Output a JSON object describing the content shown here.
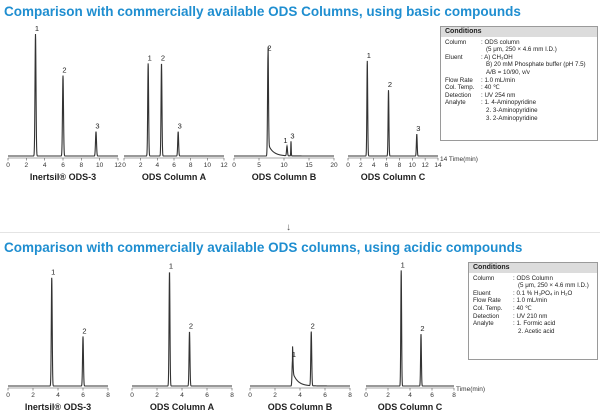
{
  "section1": {
    "title": "Comparison with commercially available ODS Columns, using basic compounds",
    "conditions": {
      "heading": "Conditions",
      "rows": [
        {
          "label": "Column",
          "lines": [
            ": ODS column",
            "(5 μm, 250 × 4.6 mm I.D.)"
          ]
        },
        {
          "label": "Eluent",
          "lines": [
            ": A) CH₃OH",
            "B) 20 mM Phosphate buffer (pH 7.5)",
            "A/B = 10/90, v/v"
          ]
        },
        {
          "label": "Flow Rate",
          "lines": [
            ": 1.0 mL/min"
          ]
        },
        {
          "label": "Col. Temp.",
          "lines": [
            ": 40 ℃"
          ]
        },
        {
          "label": "Detection",
          "lines": [
            ": UV 254 nm"
          ]
        },
        {
          "label": "Analyte",
          "lines": [
            ": 1. 4-Aminopyridine",
            "2. 3-Aminopyridine",
            "3. 2-Aminopyridine"
          ]
        }
      ]
    }
  },
  "arrow": "↓",
  "section2": {
    "title": "Comparison with commercially available ODS columns, using acidic compounds",
    "conditions": {
      "heading": "Conditions",
      "rows": [
        {
          "label": "Column",
          "lines": [
            ": ODS Column",
            "(5 μm, 250 × 4.6 mm I.D.)"
          ]
        },
        {
          "label": "Eluent",
          "lines": [
            ": 0.1 % H₃PO₄ in H₂O"
          ]
        },
        {
          "label": "Flow Rate",
          "lines": [
            ": 1.0 mL/min"
          ]
        },
        {
          "label": "Col. Temp.",
          "lines": [
            ": 40 ℃"
          ]
        },
        {
          "label": "Detection",
          "lines": [
            ": UV 210 nm"
          ]
        },
        {
          "label": "Analyte",
          "lines": [
            ": 1. Formic acid",
            "2. Acetic acid"
          ]
        }
      ]
    }
  },
  "chart_data": [
    {
      "type": "line",
      "title": "Inertsil® ODS-3",
      "xlim": [
        0,
        12
      ],
      "ticks": [
        0,
        2,
        4,
        6,
        8,
        10,
        12
      ],
      "xunit": "",
      "peaks": [
        {
          "label": "1",
          "t": 3.0,
          "h": 1.0
        },
        {
          "label": "2",
          "t": 6.0,
          "h": 0.66
        },
        {
          "label": "3",
          "t": 9.6,
          "h": 0.2
        }
      ]
    },
    {
      "type": "line",
      "title": "ODS Column A",
      "xlim": [
        0,
        12
      ],
      "ticks": [
        0,
        2,
        4,
        6,
        8,
        10,
        12
      ],
      "xunit": "",
      "peaks": [
        {
          "label": "1",
          "t": 2.9,
          "h": 0.76
        },
        {
          "label": "2",
          "t": 4.5,
          "h": 0.76
        },
        {
          "label": "3",
          "t": 6.5,
          "h": 0.2
        }
      ]
    },
    {
      "type": "line",
      "title": "ODS Column B",
      "xlim": [
        0,
        20
      ],
      "ticks": [
        0,
        5,
        10,
        15,
        20
      ],
      "xunit": "",
      "peaks": [
        {
          "label": "2",
          "t": 6.8,
          "h": 0.84,
          "tail": 0.1
        },
        {
          "label": "1",
          "t": 10.6,
          "h": 0.08
        },
        {
          "label": "3",
          "t": 11.4,
          "h": 0.12,
          "width": 0.5
        }
      ]
    },
    {
      "type": "line",
      "title": "ODS Column C",
      "xlim": [
        0,
        14
      ],
      "ticks": [
        0,
        2,
        4,
        6,
        8,
        10,
        12,
        14
      ],
      "xunit": "14 Time(min)",
      "peaks": [
        {
          "label": "1",
          "t": 3.0,
          "h": 0.78
        },
        {
          "label": "2",
          "t": 6.3,
          "h": 0.54
        },
        {
          "label": "3",
          "t": 10.7,
          "h": 0.18
        }
      ]
    },
    {
      "type": "line",
      "title": "Inertsil® ODS-3",
      "xlim": [
        0,
        8
      ],
      "ticks": [
        0,
        2,
        4,
        6,
        8
      ],
      "xunit": "",
      "peaks": [
        {
          "label": "1",
          "t": 3.5,
          "h": 0.92
        },
        {
          "label": "2",
          "t": 6.0,
          "h": 0.42
        }
      ]
    },
    {
      "type": "line",
      "title": "ODS Column A",
      "xlim": [
        0,
        8
      ],
      "ticks": [
        0,
        2,
        4,
        6,
        8
      ],
      "xunit": "",
      "peaks": [
        {
          "label": "1",
          "t": 3.0,
          "h": 0.97
        },
        {
          "label": "2",
          "t": 4.6,
          "h": 0.46
        }
      ]
    },
    {
      "type": "line",
      "title": "ODS Column B",
      "xlim": [
        0,
        8
      ],
      "ticks": [
        0,
        2,
        4,
        6,
        8
      ],
      "xunit": "",
      "peaks": [
        {
          "label": "1",
          "t": 3.4,
          "h": 0.22,
          "tail": 0.12
        },
        {
          "label": "2",
          "t": 4.9,
          "h": 0.46
        }
      ]
    },
    {
      "type": "line",
      "title": "ODS Column C",
      "xlim": [
        0,
        8
      ],
      "ticks": [
        0,
        2,
        4,
        6,
        8
      ],
      "xunit": "Time(min)",
      "peaks": [
        {
          "label": "1",
          "t": 3.2,
          "h": 0.98
        },
        {
          "label": "2",
          "t": 5.0,
          "h": 0.44
        }
      ]
    }
  ]
}
